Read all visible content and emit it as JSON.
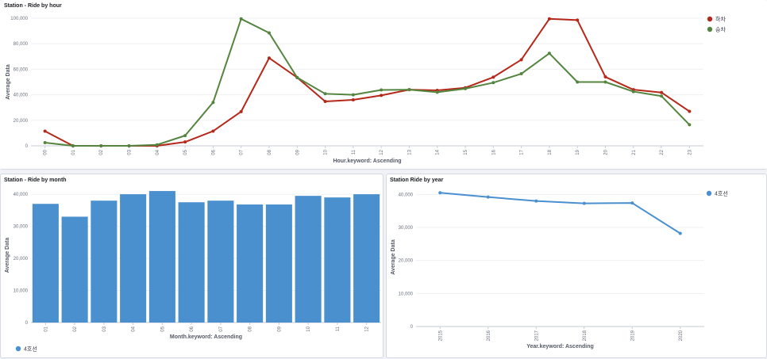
{
  "panels": {
    "hour": {
      "title": "Station - Ride by hour"
    },
    "month": {
      "title": "Station - Ride by month"
    },
    "year": {
      "title": "Station Ride by year"
    }
  },
  "colors": {
    "red": "#b5281a",
    "green": "#54853e",
    "blue": "#4a90cf",
    "bar": "#4a90cf"
  },
  "chart_data": [
    {
      "id": "hour",
      "type": "line",
      "title": "Station - Ride by hour",
      "xlabel": "Hour.keyword: Ascending",
      "ylabel": "Average Data",
      "categories": [
        "00",
        "01",
        "02",
        "03",
        "04",
        "05",
        "06",
        "07",
        "08",
        "09",
        "10",
        "11",
        "12",
        "13",
        "14",
        "15",
        "16",
        "17",
        "18",
        "19",
        "20",
        "21",
        "22",
        "23"
      ],
      "ylim": [
        0,
        100000
      ],
      "yticks": [
        0,
        20000,
        40000,
        60000,
        80000,
        100000
      ],
      "ytick_labels": [
        "0",
        "20,000",
        "40,000",
        "60,000",
        "80,000",
        "100,000"
      ],
      "legend_position": "top-right",
      "series": [
        {
          "name": "하차",
          "color": "#b5281a",
          "values": [
            11500,
            0,
            0,
            0,
            0,
            3000,
            11500,
            26800,
            68800,
            53500,
            34800,
            36000,
            39500,
            44000,
            43500,
            45500,
            53800,
            67500,
            99500,
            98500,
            54000,
            44000,
            41800,
            27000
          ]
        },
        {
          "name": "승차",
          "color": "#54853e",
          "values": [
            2500,
            0,
            0,
            0,
            800,
            8000,
            34000,
            99500,
            88500,
            53500,
            40800,
            40000,
            43800,
            44000,
            42000,
            44800,
            49500,
            56500,
            72500,
            50000,
            50000,
            42500,
            39000,
            16500
          ]
        }
      ]
    },
    {
      "id": "month",
      "type": "bar",
      "title": "Station - Ride by month",
      "xlabel": "Month.keyword: Ascending",
      "ylabel": "Average Data",
      "categories": [
        "01",
        "02",
        "03",
        "04",
        "05",
        "06",
        "07",
        "08",
        "09",
        "10",
        "11",
        "12"
      ],
      "ylim": [
        0,
        42000
      ],
      "yticks": [
        0,
        10000,
        20000,
        30000,
        40000
      ],
      "ytick_labels": [
        "0",
        "10,000",
        "20,000",
        "30,000",
        "40,000"
      ],
      "legend_position": "bottom-left",
      "series": [
        {
          "name": "4호선",
          "color": "#4a90cf",
          "values": [
            37000,
            33000,
            38000,
            40000,
            41000,
            37500,
            38000,
            36800,
            36800,
            39500,
            39000,
            40000
          ]
        }
      ]
    },
    {
      "id": "year",
      "type": "line",
      "title": "Station Ride by year",
      "xlabel": "Year.keyword: Ascending",
      "ylabel": "Average Data",
      "categories": [
        "2015",
        "2016",
        "2017",
        "2018",
        "2019",
        "2020"
      ],
      "ylim": [
        0,
        42000
      ],
      "yticks": [
        0,
        10000,
        20000,
        30000,
        40000
      ],
      "ytick_labels": [
        "0",
        "10,000",
        "20,000",
        "30,000",
        "40,000"
      ],
      "legend_position": "top-right",
      "series": [
        {
          "name": "4호선",
          "color": "#4a90cf",
          "values": [
            40500,
            39200,
            38000,
            37300,
            37400,
            28200
          ]
        }
      ]
    }
  ]
}
